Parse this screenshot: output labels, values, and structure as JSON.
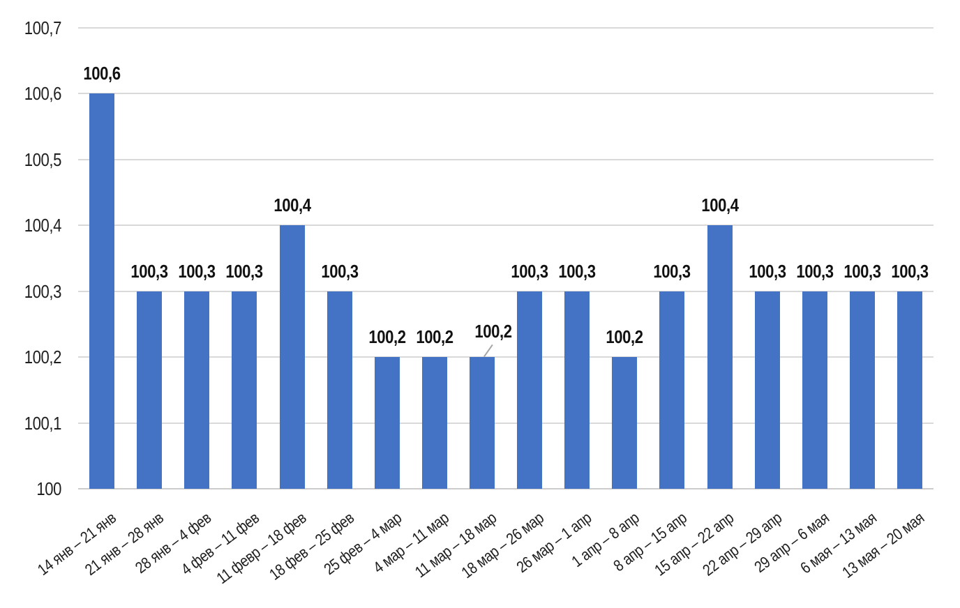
{
  "chart_data": {
    "type": "bar",
    "title": "",
    "xlabel": "",
    "ylabel": "",
    "categories": [
      "14 янв – 21 янв",
      "21 янв – 28 янв",
      "28 янв – 4 фев",
      "4 фев – 11 фев",
      "11 февр – 18 фев",
      "18 фев – 25 фев",
      "25 фев – 4 мар",
      "4 мар – 11 мар",
      "11 мар – 18 мар",
      "18 мар – 26 мар",
      "26 мар – 1 апр",
      "1 апр – 8 апр",
      "8 апр – 15 апр",
      "15 апр – 22 апр",
      "22 апр – 29 апр",
      "29 апр – 6 мая",
      "6 мая – 13 мая",
      "13 мая – 20 мая"
    ],
    "values": [
      100.6,
      100.3,
      100.3,
      100.3,
      100.4,
      100.3,
      100.2,
      100.2,
      100.2,
      100.3,
      100.3,
      100.2,
      100.3,
      100.4,
      100.3,
      100.3,
      100.3,
      100.3
    ],
    "value_labels": [
      "100,6",
      "100,3",
      "100,3",
      "100,3",
      "100,4",
      "100,3",
      "100,2",
      "100,2",
      "100,2",
      "100,3",
      "100,3",
      "100,2",
      "100,3",
      "100,4",
      "100,3",
      "100,3",
      "100,3",
      "100,3"
    ],
    "y_ticks": [
      "100",
      "100,1",
      "100,2",
      "100,3",
      "100,4",
      "100,5",
      "100,6",
      "100,7"
    ],
    "y_tick_values": [
      100,
      100.1,
      100.2,
      100.3,
      100.4,
      100.5,
      100.6,
      100.7
    ],
    "ylim": [
      100,
      100.7
    ],
    "grid": true,
    "legend": "none",
    "colors": {
      "bar": "#4472C4",
      "gridline": "#D9D9D9",
      "axis_line": "#CCCCCC",
      "value_label_text": "#111111",
      "tick_text": "#1f1f1f",
      "callout_leader_line": "#A6A6A6"
    },
    "callout": {
      "index": 8,
      "label": "100,2"
    }
  }
}
